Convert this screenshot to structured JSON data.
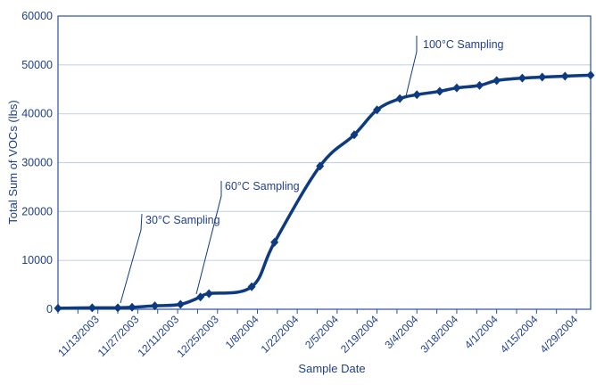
{
  "chart_data": {
    "type": "line",
    "title": "",
    "xlabel": "Sample Date",
    "ylabel": "Total Sum of VOCs (lbs)",
    "ylim": [
      0,
      60000
    ],
    "yticks": [
      0,
      10000,
      20000,
      30000,
      40000,
      50000,
      60000
    ],
    "xlim": [
      "10/30/2003",
      "5/4/2004"
    ],
    "xtick_labels": [
      "11/13/2003",
      "11/27/2003",
      "12/11/2003",
      "12/25/2003",
      "1/8/2004",
      "1/22/2004",
      "2/5/2004",
      "2/19/2004",
      "3/4/2004",
      "3/18/2004",
      "4/1/2004",
      "4/15/2004",
      "4/29/2004"
    ],
    "grid": true,
    "legend": "none",
    "colors": {
      "line": "#0d3a80",
      "axis": "#2a50a0",
      "grid": "#c8d2e6",
      "text": "#1f3f8a"
    },
    "series": [
      {
        "marker": "diamond",
        "x": [
          "10/30/2003",
          "11/11/2003",
          "11/20/2003",
          "11/25/2003",
          "12/3/2003",
          "12/12/2003",
          "12/19/2003",
          "12/22/2003",
          "1/6/2004",
          "1/14/2004",
          "1/30/2004",
          "2/11/2004",
          "2/19/2004",
          "2/27/2004",
          "3/4/2004",
          "3/12/2004",
          "3/18/2004",
          "3/26/2004",
          "4/1/2004",
          "4/10/2004",
          "4/17/2004",
          "4/25/2004",
          "5/4/2004"
        ],
        "y": [
          200,
          300,
          300,
          400,
          700,
          1000,
          2500,
          3200,
          4600,
          13700,
          29300,
          35700,
          40800,
          43100,
          43900,
          44600,
          45300,
          45800,
          46800,
          47300,
          47500,
          47700,
          47900
        ]
      }
    ],
    "annotations": [
      {
        "text": "30°C Sampling",
        "date": "11/22/2003"
      },
      {
        "text": "60°C Sampling",
        "date": "12/18/2003"
      },
      {
        "text": "100°C Sampling",
        "date": "2/28/2004"
      }
    ]
  }
}
